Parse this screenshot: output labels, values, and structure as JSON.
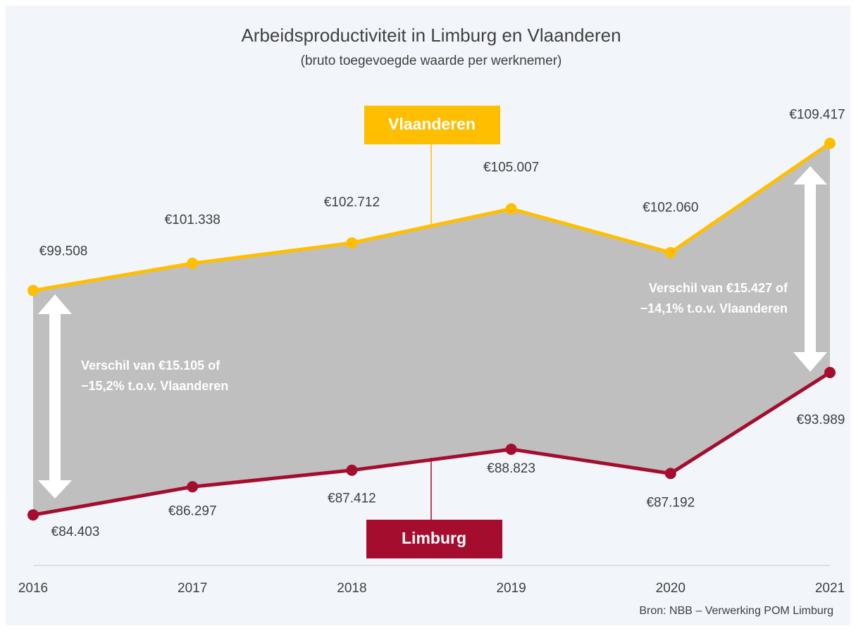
{
  "chart_data": {
    "type": "line",
    "title": "Arbeidsproductiviteit in Limburg en Vlaanderen",
    "subtitle": "(bruto toegevoegde waarde per werknemer)",
    "categories": [
      "2016",
      "2017",
      "2018",
      "2019",
      "2020",
      "2021"
    ],
    "series": [
      {
        "name": "Vlaanderen",
        "color": "#ffbf00",
        "values": [
          99508,
          101338,
          102712,
          105007,
          102060,
          109417
        ],
        "value_labels": [
          "€99.508",
          "€101.338",
          "€102.712",
          "€105.007",
          "€102.060",
          "€109.417"
        ]
      },
      {
        "name": "Limburg",
        "color": "#a50d2e",
        "values": [
          84403,
          86297,
          87412,
          88823,
          87192,
          93989
        ],
        "value_labels": [
          "€84.403",
          "€86.297",
          "€87.412",
          "€88.823",
          "€87.192",
          "€93.989"
        ]
      }
    ],
    "band_color": "#bfbfbf",
    "ylim": [
      81000,
      112000
    ],
    "annotations": [
      {
        "lines": [
          "Verschil van €15.105 of",
          "−15,2% t.o.v. Vlaanderen"
        ]
      },
      {
        "lines": [
          "Verschil van €15.427 of",
          "−14,1% t.o.v. Vlaanderen"
        ]
      }
    ],
    "source": "Bron: NBB – Verwerking POM Limburg"
  }
}
